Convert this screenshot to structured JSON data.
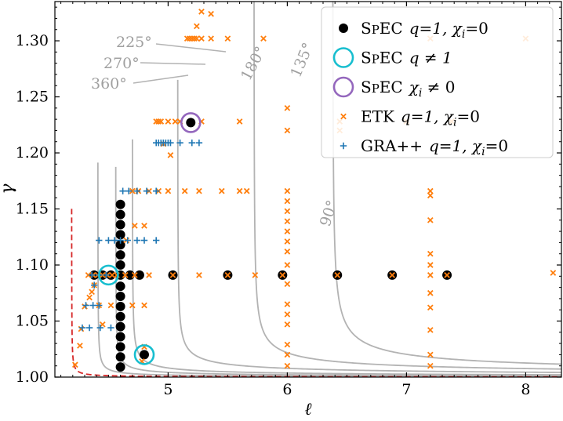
{
  "chart_data": {
    "type": "scatter",
    "xlabel": "ℓ",
    "ylabel": "γ",
    "xlim": [
      4.05,
      8.3
    ],
    "ylim": [
      1.0,
      1.335
    ],
    "xticks": [
      5,
      6,
      7,
      8
    ],
    "yticks": [
      1.0,
      1.05,
      1.1,
      1.15,
      1.2,
      1.25,
      1.3
    ],
    "xtick_labels": [
      "5",
      "6",
      "7",
      "8"
    ],
    "ytick_labels": [
      "1.00",
      "1.05",
      "1.10",
      "1.15",
      "1.20",
      "1.25",
      "1.30"
    ],
    "colors": {
      "spec_q1": "#000000",
      "spec_q_ne_1": "#17becf",
      "spec_chi_ne_0": "#9467bd",
      "etk": "#ff7f0e",
      "grapp": "#1f77b4",
      "contour": "#b3b3b3",
      "boundary": "#d62728"
    },
    "legend": {
      "position": "top-right",
      "entries": [
        {
          "key": "spec_q1",
          "marker": "dot",
          "prefix": "SpEC",
          "cond": "q=1, χ",
          "sub": "i",
          "tail": "=0"
        },
        {
          "key": "spec_q_ne_1",
          "marker": "ring",
          "prefix": "SpEC",
          "cond": "q ≠ 1",
          "sub": "",
          "tail": ""
        },
        {
          "key": "spec_chi_ne_0",
          "marker": "ring",
          "prefix": "SpEC",
          "cond": "χ",
          "sub": "i",
          "tail": " ≠ 0"
        },
        {
          "key": "etk",
          "marker": "x",
          "prefix": "ETK",
          "cond": "q=1, χ",
          "sub": "i",
          "tail": "=0"
        },
        {
          "key": "grapp",
          "marker": "plus",
          "prefix": "GRA++",
          "cond": "q=1, χ",
          "sub": "i",
          "tail": "=0"
        }
      ]
    },
    "contour_labels": [
      {
        "text": "225°",
        "kind": "outside"
      },
      {
        "text": "270°",
        "kind": "outside"
      },
      {
        "text": "360°",
        "kind": "outside"
      },
      {
        "text": "180°",
        "kind": "inline"
      },
      {
        "text": "135°",
        "kind": "inline"
      },
      {
        "text": "90°",
        "kind": "inline"
      }
    ],
    "contours": [
      {
        "name": "contour-90",
        "label": "90°",
        "xmin": 6.38,
        "xmax": 8.3,
        "p": 0.5,
        "a": 0.016
      },
      {
        "name": "contour-135",
        "label": "135°",
        "xmin": 5.72,
        "xmax": 8.3,
        "p": 0.5,
        "a": 0.0115
      },
      {
        "name": "contour-180",
        "label": "180°",
        "xmin": 5.08,
        "xmax": 8.3,
        "p": 0.5,
        "a": 0.0075
      },
      {
        "name": "contour-225",
        "label": "225°",
        "xmin": 4.7,
        "xmax": 8.3,
        "p": 0.55,
        "a": 0.0042
      },
      {
        "name": "contour-270",
        "label": "270°",
        "xmin": 4.56,
        "xmax": 8.3,
        "p": 0.6,
        "a": 0.0026
      },
      {
        "name": "contour-360",
        "label": "360°",
        "xmin": 4.41,
        "xmax": 8.3,
        "p": 0.7,
        "a": 0.0013
      }
    ],
    "boundary": {
      "name": "capture-boundary",
      "xmin": 4.19,
      "xmax": 8.3,
      "p": 0.8,
      "a": 0.0005
    },
    "series": [
      {
        "name": "SpEC q=1, χi=0",
        "key": "spec_q1",
        "marker": "dot",
        "points": [
          [
            4.6,
            1.009
          ],
          [
            4.6,
            1.018
          ],
          [
            4.6,
            1.027
          ],
          [
            4.6,
            1.036
          ],
          [
            4.6,
            1.045
          ],
          [
            4.6,
            1.054
          ],
          [
            4.6,
            1.063
          ],
          [
            4.6,
            1.072
          ],
          [
            4.6,
            1.081
          ],
          [
            4.6,
            1.091
          ],
          [
            4.6,
            1.1
          ],
          [
            4.6,
            1.109
          ],
          [
            4.6,
            1.118
          ],
          [
            4.6,
            1.127
          ],
          [
            4.6,
            1.136
          ],
          [
            4.6,
            1.145
          ],
          [
            4.6,
            1.154
          ],
          [
            4.38,
            1.091
          ],
          [
            4.45,
            1.091
          ],
          [
            4.52,
            1.091
          ],
          [
            4.68,
            1.091
          ],
          [
            4.76,
            1.091
          ],
          [
            5.04,
            1.091
          ],
          [
            5.5,
            1.091
          ],
          [
            5.96,
            1.091
          ],
          [
            6.42,
            1.091
          ],
          [
            6.88,
            1.091
          ],
          [
            7.34,
            1.091
          ],
          [
            4.8,
            1.02
          ],
          [
            5.19,
            1.227
          ]
        ]
      },
      {
        "name": "SpEC q≠1",
        "key": "spec_q_ne_1",
        "marker": "ring",
        "points": [
          [
            4.5,
            1.091
          ],
          [
            4.8,
            1.02
          ]
        ]
      },
      {
        "name": "SpEC χi≠0",
        "key": "spec_chi_ne_0",
        "marker": "ring",
        "points": [
          [
            5.19,
            1.227
          ]
        ]
      },
      {
        "name": "ETK q=1, χi=0",
        "key": "etk",
        "marker": "x",
        "points": [
          [
            4.33,
            1.091
          ],
          [
            4.37,
            1.091
          ],
          [
            4.41,
            1.091
          ],
          [
            4.45,
            1.091
          ],
          [
            4.49,
            1.091
          ],
          [
            4.53,
            1.091
          ],
          [
            4.57,
            1.091
          ],
          [
            4.64,
            1.091
          ],
          [
            4.72,
            1.091
          ],
          [
            4.84,
            1.091
          ],
          [
            5.04,
            1.091
          ],
          [
            5.26,
            1.091
          ],
          [
            5.5,
            1.091
          ],
          [
            5.73,
            1.091
          ],
          [
            5.96,
            1.091
          ],
          [
            6.42,
            1.091
          ],
          [
            6.88,
            1.091
          ],
          [
            7.2,
            1.091
          ],
          [
            7.34,
            1.091
          ],
          [
            8.23,
            1.093
          ],
          [
            5.16,
            1.302
          ],
          [
            5.18,
            1.302
          ],
          [
            5.2,
            1.302
          ],
          [
            5.22,
            1.302
          ],
          [
            5.24,
            1.302
          ],
          [
            5.28,
            1.302
          ],
          [
            5.36,
            1.302
          ],
          [
            5.5,
            1.302
          ],
          [
            5.8,
            1.302
          ],
          [
            7.2,
            1.302
          ],
          [
            8.0,
            1.302
          ],
          [
            5.24,
            1.313
          ],
          [
            5.28,
            1.326
          ],
          [
            5.36,
            1.324
          ],
          [
            4.9,
            1.228
          ],
          [
            4.92,
            1.228
          ],
          [
            4.94,
            1.228
          ],
          [
            5.0,
            1.228
          ],
          [
            5.06,
            1.228
          ],
          [
            5.1,
            1.228
          ],
          [
            5.28,
            1.228
          ],
          [
            5.6,
            1.228
          ],
          [
            6.0,
            1.22
          ],
          [
            6.44,
            1.228
          ],
          [
            7.0,
            1.228
          ],
          [
            7.38,
            1.228
          ],
          [
            6.0,
            1.24
          ],
          [
            6.44,
            1.22
          ],
          [
            4.96,
            1.208
          ],
          [
            5.02,
            1.198
          ],
          [
            4.7,
            1.166
          ],
          [
            4.75,
            1.166
          ],
          [
            4.84,
            1.166
          ],
          [
            4.92,
            1.166
          ],
          [
            5.0,
            1.166
          ],
          [
            5.14,
            1.166
          ],
          [
            5.26,
            1.166
          ],
          [
            5.45,
            1.166
          ],
          [
            5.6,
            1.166
          ],
          [
            5.66,
            1.166
          ],
          [
            4.72,
            1.135
          ],
          [
            4.65,
            1.122
          ],
          [
            4.8,
            1.135
          ],
          [
            6.0,
            1.166
          ],
          [
            6.0,
            1.157
          ],
          [
            6.0,
            1.148
          ],
          [
            6.0,
            1.139
          ],
          [
            6.0,
            1.13
          ],
          [
            6.0,
            1.121
          ],
          [
            6.0,
            1.112
          ],
          [
            6.0,
            1.1
          ],
          [
            6.0,
            1.083
          ],
          [
            6.0,
            1.065
          ],
          [
            6.0,
            1.056
          ],
          [
            6.0,
            1.047
          ],
          [
            6.0,
            1.029
          ],
          [
            6.0,
            1.02
          ],
          [
            6.0,
            1.01
          ],
          [
            7.2,
            1.166
          ],
          [
            7.2,
            1.162
          ],
          [
            7.2,
            1.14
          ],
          [
            7.2,
            1.11
          ],
          [
            7.2,
            1.1
          ],
          [
            7.2,
            1.075
          ],
          [
            7.2,
            1.062
          ],
          [
            7.2,
            1.042
          ],
          [
            7.2,
            1.02
          ],
          [
            7.2,
            1.01
          ],
          [
            4.22,
            1.011
          ],
          [
            4.26,
            1.028
          ],
          [
            4.27,
            1.043
          ],
          [
            4.3,
            1.063
          ],
          [
            4.34,
            1.071
          ],
          [
            4.36,
            1.076
          ],
          [
            4.42,
            1.064
          ],
          [
            4.52,
            1.064
          ],
          [
            4.7,
            1.064
          ],
          [
            4.8,
            1.064
          ],
          [
            4.38,
            1.082
          ],
          [
            4.45,
            1.047
          ],
          [
            4.8,
            1.027
          ],
          [
            4.78,
            1.014
          ]
        ]
      },
      {
        "name": "GRA++ q=1, χi=0",
        "key": "grapp",
        "marker": "plus",
        "points": [
          [
            4.9,
            1.209
          ],
          [
            4.92,
            1.209
          ],
          [
            4.94,
            1.209
          ],
          [
            4.96,
            1.209
          ],
          [
            4.98,
            1.209
          ],
          [
            5.0,
            1.209
          ],
          [
            5.02,
            1.209
          ],
          [
            5.1,
            1.209
          ],
          [
            5.2,
            1.209
          ],
          [
            5.26,
            1.209
          ],
          [
            4.62,
            1.166
          ],
          [
            4.67,
            1.166
          ],
          [
            4.74,
            1.166
          ],
          [
            4.82,
            1.166
          ],
          [
            4.9,
            1.166
          ],
          [
            4.42,
            1.122
          ],
          [
            4.5,
            1.122
          ],
          [
            4.55,
            1.122
          ],
          [
            4.6,
            1.122
          ],
          [
            4.66,
            1.122
          ],
          [
            4.74,
            1.122
          ],
          [
            4.8,
            1.122
          ],
          [
            4.9,
            1.122
          ],
          [
            4.36,
            1.091
          ],
          [
            4.42,
            1.091
          ],
          [
            4.48,
            1.091
          ],
          [
            4.31,
            1.064
          ],
          [
            4.37,
            1.064
          ],
          [
            4.42,
            1.064
          ],
          [
            4.28,
            1.044
          ],
          [
            4.34,
            1.044
          ],
          [
            4.43,
            1.044
          ],
          [
            4.52,
            1.044
          ],
          [
            4.38,
            1.082
          ]
        ]
      }
    ]
  }
}
